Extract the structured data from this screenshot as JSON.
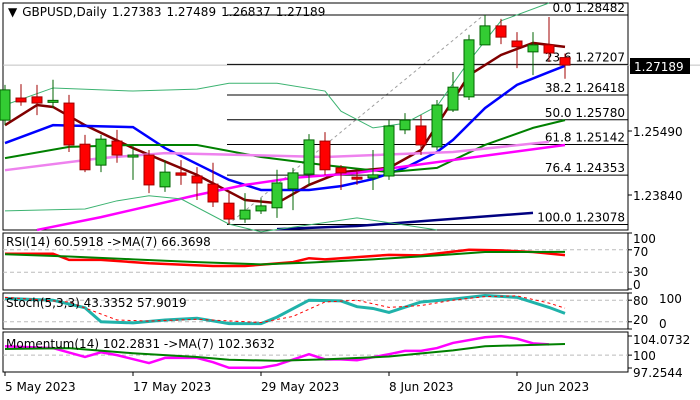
{
  "header": {
    "symbol": "GBPUSD,Daily",
    "open": "1.27383",
    "high": "1.27489",
    "low": "1.26837",
    "close": "1.27189"
  },
  "current_price_label": "1.27189",
  "colors": {
    "bull": "#33cc33",
    "bear": "#ff0000",
    "ma_fast": "#800000",
    "ma_mid": "#0000ff",
    "ma_slow": "#008000",
    "ma_violet": "#ee82ee",
    "ma_magenta": "#ff00ff",
    "ma_long": "#000080",
    "band": "#3cb371",
    "stoch": "#20b2aa"
  },
  "chart_data": [
    {
      "type": "candlestick",
      "title": "GBPUSD,Daily",
      "x_tick_labels": [
        "5 May 2023",
        "17 May 2023",
        "29 May 2023",
        "8 Jun 2023",
        "20 Jun 2023"
      ],
      "y_tick_labels": [
        "1.25490",
        "1.23840"
      ],
      "candles": [
        [
          1.2577,
          1.2668,
          1.2564,
          1.2655
        ],
        [
          1.2634,
          1.267,
          1.2614,
          1.2624
        ],
        [
          1.2637,
          1.2668,
          1.259,
          1.2621
        ],
        [
          1.2625,
          1.2681,
          1.2608,
          1.2628
        ],
        [
          1.2621,
          1.2642,
          1.2495,
          1.2513
        ],
        [
          1.2515,
          1.2539,
          1.2443,
          1.2449
        ],
        [
          1.2461,
          1.2539,
          1.2443,
          1.2528
        ],
        [
          1.2523,
          1.2552,
          1.2467,
          1.2487
        ],
        [
          1.2482,
          1.251,
          1.2423,
          1.2487
        ],
        [
          1.2487,
          1.25,
          1.2389,
          1.241
        ],
        [
          1.2405,
          1.2474,
          1.2392,
          1.2443
        ],
        [
          1.2441,
          1.2474,
          1.241,
          1.2435
        ],
        [
          1.2433,
          1.2456,
          1.2371,
          1.2415
        ],
        [
          1.2412,
          1.2467,
          1.2353,
          1.2366
        ],
        [
          1.2363,
          1.2389,
          1.2309,
          1.2322
        ],
        [
          1.2322,
          1.2389,
          1.2312,
          1.2345
        ],
        [
          1.2343,
          1.2376,
          1.2335,
          1.2356
        ],
        [
          1.2351,
          1.2449,
          1.2325,
          1.2415
        ],
        [
          1.24,
          1.2454,
          1.2345,
          1.2441
        ],
        [
          1.2438,
          1.2541,
          1.2407,
          1.2526
        ],
        [
          1.2523,
          1.2546,
          1.2436,
          1.2449
        ],
        [
          1.2454,
          1.2461,
          1.2397,
          1.2441
        ],
        [
          1.243,
          1.2443,
          1.241,
          1.2425
        ],
        [
          1.2428,
          1.25,
          1.2397,
          1.2436
        ],
        [
          1.2433,
          1.2577,
          1.2423,
          1.2562
        ],
        [
          1.2552,
          1.2595,
          1.2541,
          1.2577
        ],
        [
          1.2562,
          1.259,
          1.2487,
          1.2513
        ],
        [
          1.2508,
          1.2629,
          1.25,
          1.2616
        ],
        [
          1.2603,
          1.2701,
          1.2598,
          1.2662
        ],
        [
          1.2637,
          1.2797,
          1.2629,
          1.2784
        ],
        [
          1.2771,
          1.2848,
          1.2771,
          1.282
        ],
        [
          1.282,
          1.2838,
          1.2773,
          1.2791
        ],
        [
          1.2781,
          1.2804,
          1.2711,
          1.2766
        ],
        [
          1.2753,
          1.2804,
          1.2693,
          1.2771
        ],
        [
          1.2771,
          1.2843,
          1.2727,
          1.275
        ],
        [
          1.27383,
          1.27489,
          1.26837,
          1.27189
        ]
      ],
      "moving_averages": [
        {
          "key": "ma_fast",
          "points": [
            [
              0,
              1.2564
            ],
            [
              2,
              1.2616
            ],
            [
              3,
              1.2611
            ],
            [
              5,
              1.2564
            ],
            [
              8,
              1.2505
            ],
            [
              12,
              1.2436
            ],
            [
              15,
              1.2371
            ],
            [
              17,
              1.2363
            ],
            [
              19,
              1.241
            ],
            [
              21,
              1.2443
            ],
            [
              24,
              1.2454
            ],
            [
              26,
              1.25
            ],
            [
              27,
              1.2564
            ],
            [
              29,
              1.2693
            ],
            [
              31,
              1.2745
            ],
            [
              33,
              1.2776
            ],
            [
              35,
              1.2766
            ]
          ]
        },
        {
          "key": "ma_mid",
          "points": [
            [
              0,
              1.2518
            ],
            [
              3,
              1.2564
            ],
            [
              8,
              1.2559
            ],
            [
              10,
              1.2505
            ],
            [
              14,
              1.2423
            ],
            [
              16,
              1.2397
            ],
            [
              19,
              1.2397
            ],
            [
              21,
              1.2407
            ],
            [
              23,
              1.2425
            ],
            [
              25,
              1.2454
            ],
            [
              27,
              1.2495
            ],
            [
              28,
              1.2526
            ],
            [
              30,
              1.2608
            ],
            [
              32,
              1.2668
            ],
            [
              34,
              1.2701
            ],
            [
              35,
              1.2717
            ]
          ]
        },
        {
          "key": "ma_slow",
          "points": [
            [
              0,
              1.2479
            ],
            [
              4,
              1.2508
            ],
            [
              8,
              1.2513
            ],
            [
              12,
              1.2513
            ],
            [
              16,
              1.2482
            ],
            [
              20,
              1.2461
            ],
            [
              24,
              1.2443
            ],
            [
              27,
              1.2454
            ],
            [
              30,
              1.2513
            ],
            [
              33,
              1.2557
            ],
            [
              35,
              1.2577
            ]
          ]
        },
        {
          "key": "ma_violet",
          "points": [
            [
              0,
              1.2448
            ],
            [
              6,
              1.2479
            ],
            [
              10,
              1.2492
            ],
            [
              20,
              1.2482
            ],
            [
              28,
              1.2495
            ],
            [
              34,
              1.2521
            ]
          ]
        },
        {
          "key": "ma_magenta",
          "points": [
            [
              2,
              1.2294
            ],
            [
              6,
              1.2327
            ],
            [
              12,
              1.2384
            ],
            [
              15,
              1.241
            ],
            [
              18,
              1.2428
            ],
            [
              22,
              1.2441
            ],
            [
              35,
              1.2513
            ]
          ]
        },
        {
          "key": "ma_long",
          "points": [
            [
              17,
              1.2296
            ],
            [
              22,
              1.2304
            ],
            [
              33,
              1.2338
            ]
          ]
        },
        {
          "key": "band",
          "points": [
            [
              0,
              1.2616
            ],
            [
              3,
              1.266
            ],
            [
              8,
              1.2652
            ],
            [
              12,
              1.2657
            ],
            [
              14,
              1.2672
            ],
            [
              17,
              1.2672
            ],
            [
              20,
              1.2652
            ],
            [
              21,
              1.26
            ],
            [
              23,
              1.2557
            ],
            [
              25,
              1.2569
            ],
            [
              27,
              1.2613
            ],
            [
              29,
              1.2729
            ],
            [
              31,
              1.2833
            ],
            [
              34,
              1.2879
            ]
          ]
        },
        {
          "key": "band",
          "points": [
            [
              0,
              1.2343
            ],
            [
              5,
              1.2348
            ],
            [
              7,
              1.2369
            ],
            [
              9,
              1.2382
            ],
            [
              11,
              1.2374
            ],
            [
              14,
              1.2309
            ],
            [
              16,
              1.2289
            ],
            [
              22,
              1.2325
            ],
            [
              27,
              1.2294
            ]
          ]
        }
      ],
      "fibonacci": [
        {
          "level": "0.0",
          "price": "1.28482",
          "value": 1.28482
        },
        {
          "level": "23.6",
          "price": "1.27207",
          "value": 1.27207
        },
        {
          "level": "38.2",
          "price": "1.26418",
          "value": 1.26418
        },
        {
          "level": "50.0",
          "price": "1.25780",
          "value": 1.2578
        },
        {
          "level": "61.8",
          "price": "1.25142",
          "value": 1.25142
        },
        {
          "level": "76.4",
          "price": "1.24353",
          "value": 1.24353
        },
        {
          "level": "100.0",
          "price": "1.23078",
          "value": 1.23078
        }
      ]
    },
    {
      "type": "line",
      "label": "RSI(14) 60.5918  ->MA(7) 66.3698",
      "y_tick_labels": [
        "100",
        "70",
        "30",
        "0"
      ],
      "ylim": [
        0,
        100
      ],
      "levels": [
        70,
        30
      ],
      "series": [
        {
          "key": "bear",
          "points": [
            [
              0,
              63
            ],
            [
              3,
              63
            ],
            [
              4,
              52
            ],
            [
              6,
              52
            ],
            [
              9,
              46
            ],
            [
              13,
              41
            ],
            [
              15,
              41
            ],
            [
              18,
              48
            ],
            [
              19,
              55
            ],
            [
              20,
              53
            ],
            [
              24,
              61
            ],
            [
              26,
              60
            ],
            [
              29,
              70
            ],
            [
              31,
              69
            ],
            [
              33,
              66
            ],
            [
              35,
              60.59
            ]
          ]
        },
        {
          "key": "ma_slow",
          "points": [
            [
              0,
              62
            ],
            [
              4,
              58
            ],
            [
              8,
              53
            ],
            [
              12,
              48
            ],
            [
              16,
              44
            ],
            [
              19,
              47
            ],
            [
              23,
              53
            ],
            [
              27,
              60
            ],
            [
              30,
              66
            ],
            [
              35,
              66.37
            ]
          ]
        }
      ]
    },
    {
      "type": "line",
      "label": "Stoch(5,3,3) 43.3352 57.9019",
      "y_tick_labels": [
        "100",
        "80",
        "20",
        "0"
      ],
      "ylim": [
        0,
        100
      ],
      "levels": [
        80,
        20
      ],
      "series": [
        {
          "key": "stoch",
          "points": [
            [
              0,
              85
            ],
            [
              3,
              80
            ],
            [
              5,
              59
            ],
            [
              6,
              20
            ],
            [
              8,
              17
            ],
            [
              10,
              25
            ],
            [
              12,
              30
            ],
            [
              14,
              15
            ],
            [
              16,
              15
            ],
            [
              17,
              33
            ],
            [
              19,
              80
            ],
            [
              21,
              78
            ],
            [
              22,
              62
            ],
            [
              23,
              57
            ],
            [
              24,
              46
            ],
            [
              26,
              75
            ],
            [
              28,
              83
            ],
            [
              30,
              93
            ],
            [
              32,
              88
            ],
            [
              34,
              60
            ],
            [
              35,
              43.34
            ]
          ]
        },
        {
          "key": "bear",
          "dashed": true,
          "points": [
            [
              0,
              88
            ],
            [
              4,
              75
            ],
            [
              7,
              25
            ],
            [
              9,
              22
            ],
            [
              12,
              27
            ],
            [
              16,
              18
            ],
            [
              18,
              35
            ],
            [
              20,
              75
            ],
            [
              22,
              80
            ],
            [
              24,
              60
            ],
            [
              26,
              65
            ],
            [
              28,
              80
            ],
            [
              30,
              90
            ],
            [
              32,
              92
            ],
            [
              34,
              72
            ],
            [
              35,
              57.9
            ]
          ]
        }
      ]
    },
    {
      "type": "line",
      "label": "Momentum(14) 102.2831  ->MA(7) 102.3632",
      "y_tick_labels": [
        "104.0732",
        "100",
        "97.2544"
      ],
      "ylim": [
        97.2544,
        104.0732
      ],
      "levels": [
        100
      ],
      "series": [
        {
          "key": "ma_magenta",
          "points": [
            [
              0,
              101.9
            ],
            [
              3,
              101.5
            ],
            [
              5,
              99.6
            ],
            [
              6,
              100.6
            ],
            [
              7,
              100
            ],
            [
              9,
              98.3
            ],
            [
              10,
              99.4
            ],
            [
              12,
              99.4
            ],
            [
              13,
              98.5
            ],
            [
              14,
              97.3
            ],
            [
              16,
              97.3
            ],
            [
              17,
              97.9
            ],
            [
              19,
              100.2
            ],
            [
              20,
              99.1
            ],
            [
              21,
              99.1
            ],
            [
              22,
              98.9
            ],
            [
              24,
              100.2
            ],
            [
              25,
              100.9
            ],
            [
              26,
              100.9
            ],
            [
              27,
              101.5
            ],
            [
              28,
              102.6
            ],
            [
              30,
              103.8
            ],
            [
              31,
              104.05
            ],
            [
              32,
              103.5
            ],
            [
              33,
              102.5
            ],
            [
              34,
              102.28
            ]
          ]
        },
        {
          "key": "ma_slow",
          "points": [
            [
              0,
              101.3
            ],
            [
              4,
              101.5
            ],
            [
              8,
              100.4
            ],
            [
              12,
              99.6
            ],
            [
              14,
              99
            ],
            [
              17,
              98.8
            ],
            [
              20,
              99.1
            ],
            [
              24,
              99.7
            ],
            [
              28,
              101.0
            ],
            [
              30,
              101.9
            ],
            [
              35,
              102.36
            ]
          ]
        }
      ]
    }
  ]
}
